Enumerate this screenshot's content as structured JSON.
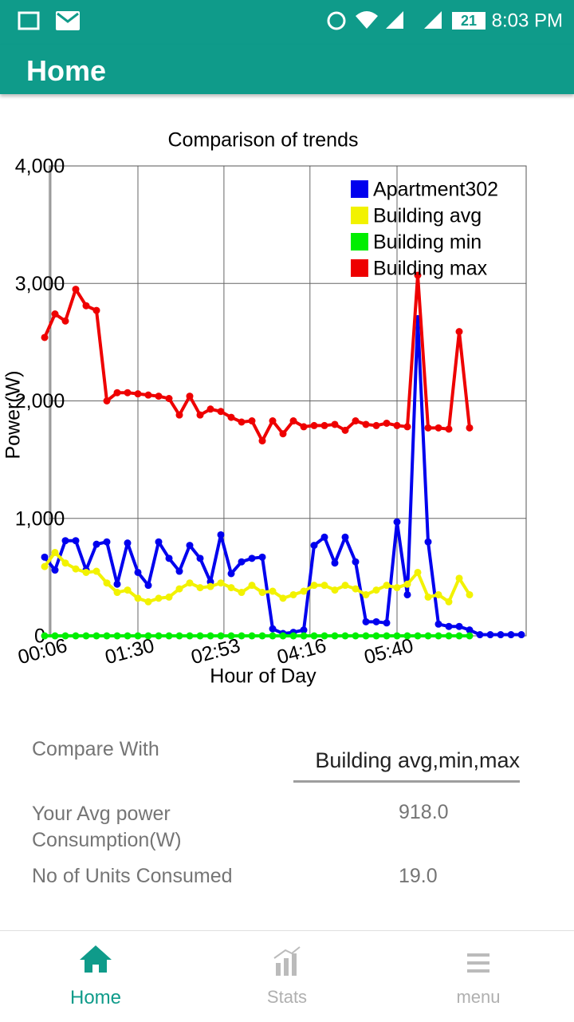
{
  "status_bar": {
    "battery": "21",
    "time": "8:03 PM"
  },
  "app_bar": {
    "title": "Home"
  },
  "chart_data": {
    "type": "line",
    "title": "Comparison of trends",
    "x_label": "Hour of Day",
    "y_label": "Power(W)",
    "x": [
      0,
      10,
      20,
      30,
      40,
      50,
      60,
      70,
      80,
      90,
      100,
      110,
      120,
      130,
      140,
      150,
      160,
      170,
      180,
      190,
      200,
      210,
      220,
      230,
      240,
      250,
      260,
      270,
      280,
      290,
      300,
      310,
      320,
      330,
      340,
      350,
      360,
      370,
      380,
      390,
      400,
      410,
      420,
      430,
      440,
      450,
      460
    ],
    "xlim": [
      0,
      460
    ],
    "xticks": [
      {
        "value": 6,
        "label": "00:06"
      },
      {
        "value": 90,
        "label": "01:30"
      },
      {
        "value": 173,
        "label": "02:53"
      },
      {
        "value": 256,
        "label": "04:16"
      },
      {
        "value": 340,
        "label": "05:40"
      }
    ],
    "ylim": [
      0,
      4000
    ],
    "yticks": [
      0,
      {
        "value": 1000,
        "label": "1,000"
      },
      {
        "value": 2000,
        "label": "2,000"
      },
      {
        "value": 3000,
        "label": "3,000"
      },
      {
        "value": 4000,
        "label": "4,000"
      }
    ],
    "grid": true,
    "legend": "top-right",
    "series": [
      {
        "name": "Apartment302",
        "color": "#0000ee",
        "values": [
          670,
          560,
          810,
          810,
          560,
          780,
          800,
          440,
          790,
          540,
          430,
          800,
          660,
          550,
          770,
          660,
          460,
          860,
          530,
          630,
          660,
          670,
          60,
          20,
          30,
          50,
          770,
          840,
          620,
          840,
          630,
          120,
          120,
          110,
          970,
          350,
          2700,
          800,
          100,
          80,
          80,
          50,
          10,
          10,
          10,
          10,
          10
        ]
      },
      {
        "name": "Building avg",
        "color": "#f2f200",
        "values": [
          590,
          710,
          620,
          570,
          540,
          550,
          450,
          370,
          390,
          320,
          290,
          320,
          330,
          400,
          450,
          410,
          420,
          450,
          410,
          370,
          430,
          370,
          380,
          320,
          350,
          380,
          430,
          430,
          390,
          430,
          400,
          350,
          390,
          430,
          410,
          440,
          540,
          330,
          350,
          290,
          490,
          350,
          null,
          null,
          null,
          null,
          null
        ]
      },
      {
        "name": "Building min",
        "color": "#00ee00",
        "values": [
          0,
          0,
          0,
          0,
          0,
          0,
          0,
          0,
          0,
          0,
          0,
          0,
          0,
          0,
          0,
          0,
          0,
          0,
          0,
          0,
          0,
          0,
          0,
          0,
          0,
          0,
          0,
          0,
          0,
          0,
          0,
          0,
          0,
          0,
          0,
          0,
          0,
          0,
          0,
          0,
          0,
          0,
          null,
          null,
          null,
          null,
          null
        ]
      },
      {
        "name": "Building max",
        "color": "#ee0000",
        "values": [
          2540,
          2740,
          2680,
          2950,
          2810,
          2770,
          2000,
          2070,
          2070,
          2060,
          2050,
          2040,
          2020,
          1880,
          2040,
          1880,
          1930,
          1910,
          1860,
          1820,
          1830,
          1660,
          1830,
          1720,
          1830,
          1780,
          1790,
          1790,
          1800,
          1750,
          1830,
          1800,
          1790,
          1810,
          1790,
          1780,
          3070,
          1770,
          1770,
          1760,
          2590,
          1770,
          null,
          null,
          null,
          null,
          null
        ]
      }
    ]
  },
  "form": {
    "compare_label": "Compare With",
    "compare_value": "Building avg,min,max",
    "avg_label": "Your Avg power Consumption(W)",
    "avg_value": "918.0",
    "units_label": "No of Units Consumed",
    "units_value": "19.0"
  },
  "nav": {
    "home": "Home",
    "stats": "Stats",
    "menu": "menu"
  }
}
